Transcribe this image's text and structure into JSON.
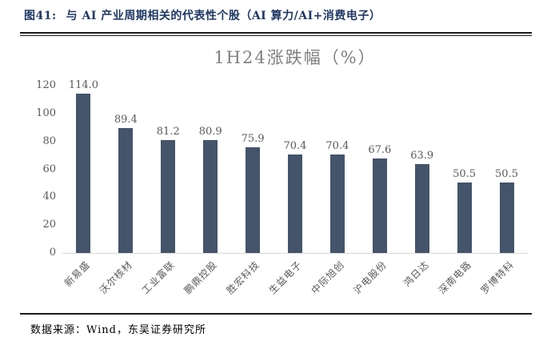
{
  "header": {
    "figure_label": "图41:",
    "figure_title": "与 AI 产业周期相关的代表性个股（AI 算力/AI+消费电子）"
  },
  "chart_data": {
    "type": "bar",
    "title": "1H24涨跌幅（%）",
    "categories": [
      "新易盛",
      "沃尔核材",
      "工业富联",
      "鹏鼎控股",
      "胜宏科技",
      "生益电子",
      "中际旭创",
      "沪电股份",
      "鸿日达",
      "深南电路",
      "罗博特科"
    ],
    "values": [
      114.0,
      89.4,
      81.2,
      80.9,
      75.9,
      70.4,
      70.4,
      67.6,
      63.9,
      50.5,
      50.5
    ],
    "data_labels": [
      "114.0",
      "89.4",
      "81.2",
      "80.9",
      "75.9",
      "70.4",
      "70.4",
      "67.6",
      "63.9",
      "50.5",
      "50.5"
    ],
    "xlabel": "",
    "ylabel": "",
    "y_ticks": [
      0,
      20,
      40,
      60,
      80,
      100,
      120
    ],
    "ylim": [
      0,
      120
    ],
    "grid": false,
    "legend": false,
    "bar_color": "#44546A",
    "title_color": "#7F7F7F",
    "axis_text_color": "#595959",
    "baseline_color": "#D9D9D9"
  },
  "footer": {
    "source": "数据来源：Wind，东吴证券研究所"
  },
  "colors": {
    "header_text": "#1F3864",
    "rule": "#1B1B1B"
  }
}
